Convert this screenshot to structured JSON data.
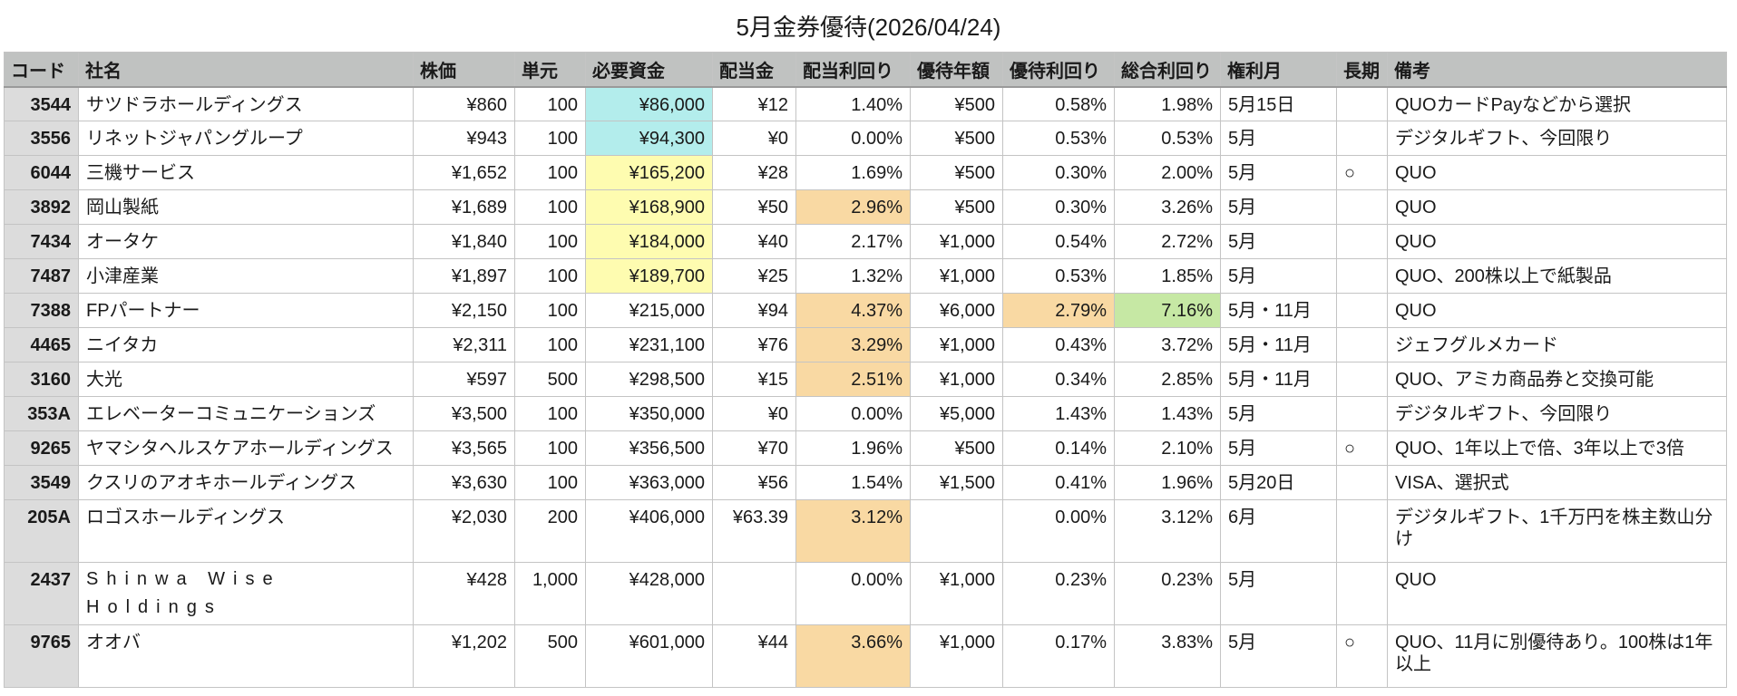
{
  "title": "5月金券優待(2026/04/24)",
  "colors": {
    "header_bg": "#c0c2c1",
    "code_bg": "#dcdcdc",
    "cyan": "#b3edec",
    "yellow": "#fefcb0",
    "orange": "#f9d9a3",
    "green": "#c6e8a4"
  },
  "columns": [
    "コード",
    "社名",
    "株価",
    "単元",
    "必要資金",
    "配当金",
    "配当利回り",
    "優待年額",
    "優待利回り",
    "総合利回り",
    "権利月",
    "長期",
    "備考"
  ],
  "rows": [
    {
      "code": "3544",
      "name": "サツドラホールディングス",
      "price": "¥860",
      "unit": "100",
      "required": "¥86,000",
      "dividend": "¥12",
      "div_yield": "1.40%",
      "benefit_amount": "¥500",
      "benefit_yield": "0.58%",
      "total_yield": "1.98%",
      "record_month": "5月15日",
      "long_term": "",
      "notes": "QUOカードPayなどから選択",
      "highlight": {
        "required": "cyan"
      }
    },
    {
      "code": "3556",
      "name": "リネットジャパングループ",
      "price": "¥943",
      "unit": "100",
      "required": "¥94,300",
      "dividend": "¥0",
      "div_yield": "0.00%",
      "benefit_amount": "¥500",
      "benefit_yield": "0.53%",
      "total_yield": "0.53%",
      "record_month": "5月",
      "long_term": "",
      "notes": "デジタルギフト、今回限り",
      "highlight": {
        "required": "cyan"
      }
    },
    {
      "code": "6044",
      "name": "三機サービス",
      "price": "¥1,652",
      "unit": "100",
      "required": "¥165,200",
      "dividend": "¥28",
      "div_yield": "1.69%",
      "benefit_amount": "¥500",
      "benefit_yield": "0.30%",
      "total_yield": "2.00%",
      "record_month": "5月",
      "long_term": "○",
      "notes": "QUO",
      "highlight": {
        "required": "yellow"
      }
    },
    {
      "code": "3892",
      "name": "岡山製紙",
      "price": "¥1,689",
      "unit": "100",
      "required": "¥168,900",
      "dividend": "¥50",
      "div_yield": "2.96%",
      "benefit_amount": "¥500",
      "benefit_yield": "0.30%",
      "total_yield": "3.26%",
      "record_month": "5月",
      "long_term": "",
      "notes": "QUO",
      "highlight": {
        "required": "yellow",
        "div_yield": "orange"
      }
    },
    {
      "code": "7434",
      "name": "オータケ",
      "price": "¥1,840",
      "unit": "100",
      "required": "¥184,000",
      "dividend": "¥40",
      "div_yield": "2.17%",
      "benefit_amount": "¥1,000",
      "benefit_yield": "0.54%",
      "total_yield": "2.72%",
      "record_month": "5月",
      "long_term": "",
      "notes": "QUO",
      "highlight": {
        "required": "yellow"
      }
    },
    {
      "code": "7487",
      "name": "小津産業",
      "price": "¥1,897",
      "unit": "100",
      "required": "¥189,700",
      "dividend": "¥25",
      "div_yield": "1.32%",
      "benefit_amount": "¥1,000",
      "benefit_yield": "0.53%",
      "total_yield": "1.85%",
      "record_month": "5月",
      "long_term": "",
      "notes": "QUO、200株以上で紙製品",
      "highlight": {
        "required": "yellow"
      }
    },
    {
      "code": "7388",
      "name": "FPパートナー",
      "price": "¥2,150",
      "unit": "100",
      "required": "¥215,000",
      "dividend": "¥94",
      "div_yield": "4.37%",
      "benefit_amount": "¥6,000",
      "benefit_yield": "2.79%",
      "total_yield": "7.16%",
      "record_month": "5月・11月",
      "long_term": "",
      "notes": "QUO",
      "highlight": {
        "div_yield": "orange",
        "benefit_yield": "orange",
        "total_yield": "green"
      }
    },
    {
      "code": "4465",
      "name": "ニイタカ",
      "price": "¥2,311",
      "unit": "100",
      "required": "¥231,100",
      "dividend": "¥76",
      "div_yield": "3.29%",
      "benefit_amount": "¥1,000",
      "benefit_yield": "0.43%",
      "total_yield": "3.72%",
      "record_month": "5月・11月",
      "long_term": "",
      "notes": "ジェフグルメカード",
      "highlight": {
        "div_yield": "orange"
      }
    },
    {
      "code": "3160",
      "name": "大光",
      "price": "¥597",
      "unit": "500",
      "required": "¥298,500",
      "dividend": "¥15",
      "div_yield": "2.51%",
      "benefit_amount": "¥1,000",
      "benefit_yield": "0.34%",
      "total_yield": "2.85%",
      "record_month": "5月・11月",
      "long_term": "",
      "notes": "QUO、アミカ商品券と交換可能",
      "highlight": {
        "div_yield": "orange"
      }
    },
    {
      "code": "353A",
      "name": "エレベーターコミュニケーションズ",
      "price": "¥3,500",
      "unit": "100",
      "required": "¥350,000",
      "dividend": "¥0",
      "div_yield": "0.00%",
      "benefit_amount": "¥5,000",
      "benefit_yield": "1.43%",
      "total_yield": "1.43%",
      "record_month": "5月",
      "long_term": "",
      "notes": "デジタルギフト、今回限り",
      "highlight": {}
    },
    {
      "code": "9265",
      "name": "ヤマシタヘルスケアホールディングス",
      "price": "¥3,565",
      "unit": "100",
      "required": "¥356,500",
      "dividend": "¥70",
      "div_yield": "1.96%",
      "benefit_amount": "¥500",
      "benefit_yield": "0.14%",
      "total_yield": "2.10%",
      "record_month": "5月",
      "long_term": "○",
      "notes": "QUO、1年以上で倍、3年以上で3倍",
      "highlight": {}
    },
    {
      "code": "3549",
      "name": "クスリのアオキホールディングス",
      "price": "¥3,630",
      "unit": "100",
      "required": "¥363,000",
      "dividend": "¥56",
      "div_yield": "1.54%",
      "benefit_amount": "¥1,500",
      "benefit_yield": "0.41%",
      "total_yield": "1.96%",
      "record_month": "5月20日",
      "long_term": "",
      "notes": "VISA、選択式",
      "highlight": {}
    },
    {
      "code": "205A",
      "name": "ロゴスホールディングス",
      "price": "¥2,030",
      "unit": "200",
      "required": "¥406,000",
      "dividend": "¥63.39",
      "div_yield": "3.12%",
      "benefit_amount": "",
      "benefit_yield": "0.00%",
      "total_yield": "3.12%",
      "record_month": "6月",
      "long_term": "",
      "notes": "デジタルギフト、1千万円を株主数山分け",
      "highlight": {
        "div_yield": "orange"
      },
      "tall": true
    },
    {
      "code": "2437",
      "name": "Shinwa Wise Holdings",
      "price": "¥428",
      "unit": "1,000",
      "required": "¥428,000",
      "dividend": "",
      "div_yield": "0.00%",
      "benefit_amount": "¥1,000",
      "benefit_yield": "0.23%",
      "total_yield": "0.23%",
      "record_month": "5月",
      "long_term": "",
      "notes": "QUO",
      "highlight": {},
      "tall": true,
      "spaced_name": true
    },
    {
      "code": "9765",
      "name": "オオバ",
      "price": "¥1,202",
      "unit": "500",
      "required": "¥601,000",
      "dividend": "¥44",
      "div_yield": "3.66%",
      "benefit_amount": "¥1,000",
      "benefit_yield": "0.17%",
      "total_yield": "3.83%",
      "record_month": "5月",
      "long_term": "○",
      "notes": "QUO、11月に別優待あり。100株は1年以上",
      "highlight": {
        "div_yield": "orange"
      },
      "tall": true
    }
  ]
}
